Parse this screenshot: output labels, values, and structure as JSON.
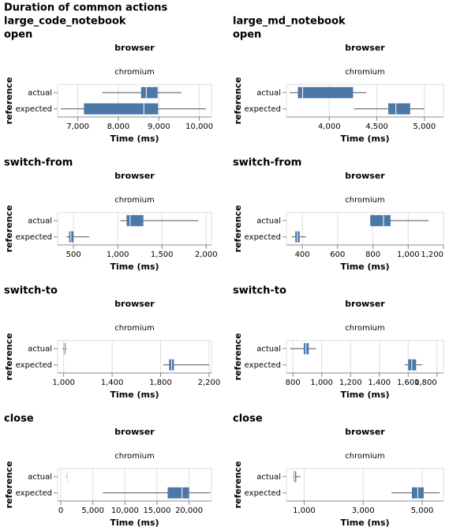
{
  "title": "Duration of common actions",
  "columns": [
    "large_code_notebook",
    "large_md_notebook"
  ],
  "chart_data": [
    {
      "type": "boxplot",
      "title": "open",
      "facet_title": "browser",
      "facet": "chromium",
      "ylabel": "reference",
      "xlabel": "Time (ms)",
      "categories": [
        "actual",
        "expected"
      ],
      "color": "#4c78a8",
      "grid": true,
      "min": [
        7600,
        6580
      ],
      "q1": [
        8560,
        7150
      ],
      "median": [
        8690,
        8630
      ],
      "q3": [
        8970,
        8980
      ],
      "max": [
        9560,
        10160
      ],
      "xlim": [
        6500,
        10300
      ],
      "xticks": [
        {
          "value": 7000,
          "label": "7,000"
        },
        {
          "value": 8000,
          "label": "8,000"
        },
        {
          "value": 9000,
          "label": "9,000"
        },
        {
          "value": 10000,
          "label": "10,000"
        }
      ]
    },
    {
      "type": "boxplot",
      "title": "open",
      "facet_title": "browser",
      "facet": "chromium",
      "ylabel": "reference",
      "xlabel": "Time (ms)",
      "categories": [
        "actual",
        "expected"
      ],
      "color": "#4c78a8",
      "grid": true,
      "min": [
        3585,
        4260
      ],
      "q1": [
        3670,
        4620
      ],
      "median": [
        3720,
        4700
      ],
      "q3": [
        4250,
        4850
      ],
      "max": [
        4390,
        5000
      ],
      "xlim": [
        3550,
        5200
      ],
      "xticks": [
        {
          "value": 4000,
          "label": "4,000"
        },
        {
          "value": 4500,
          "label": "4,500"
        },
        {
          "value": 5000,
          "label": "5,000"
        }
      ]
    },
    {
      "type": "boxplot",
      "title": "switch-from",
      "facet_title": "browser",
      "facet": "chromium",
      "ylabel": "reference",
      "xlabel": "Time (ms)",
      "categories": [
        "actual",
        "expected"
      ],
      "color": "#4c78a8",
      "grid": true,
      "min": [
        1030,
        420
      ],
      "q1": [
        1100,
        450
      ],
      "median": [
        1140,
        470
      ],
      "q3": [
        1290,
        500
      ],
      "max": [
        1910,
        680
      ],
      "xlim": [
        320,
        2060
      ],
      "xticks": [
        500,
        {
          "value": 1000,
          "label": "1,000"
        },
        {
          "value": 1500,
          "label": "1,500"
        },
        {
          "value": 2000,
          "label": "2,000"
        }
      ]
    },
    {
      "type": "boxplot",
      "title": "switch-from",
      "facet_title": "browser",
      "facet": "chromium",
      "ylabel": "reference",
      "xlabel": "Time (ms)",
      "categories": [
        "actual",
        "expected"
      ],
      "color": "#4c78a8",
      "grid": true,
      "min": [
        785,
        340
      ],
      "q1": [
        785,
        360
      ],
      "median": [
        860,
        372
      ],
      "q3": [
        900,
        385
      ],
      "max": [
        1115,
        420
      ],
      "xlim": [
        310,
        1200
      ],
      "xticks": [
        400,
        600,
        800,
        {
          "value": 1000,
          "label": "1,000"
        },
        {
          "value": 1200,
          "label": "1,200"
        }
      ]
    },
    {
      "type": "boxplot",
      "title": "switch-to",
      "facet_title": "browser",
      "facet": "chromium",
      "ylabel": "reference",
      "xlabel": "Time (ms)",
      "categories": [
        "actual",
        "expected"
      ],
      "color": "#4c78a8",
      "grid": true,
      "min": [
        990,
        1820
      ],
      "q1": [
        1000,
        1870
      ],
      "median": [
        1005,
        1890
      ],
      "q3": [
        1015,
        1910
      ],
      "max": [
        1025,
        2200
      ],
      "xlim": [
        950,
        2220
      ],
      "xticks": [
        {
          "value": 1000,
          "label": "1,000"
        },
        {
          "value": 1400,
          "label": "1,400"
        },
        {
          "value": 1800,
          "label": "1,800"
        },
        {
          "value": 2200,
          "label": "2,200"
        }
      ]
    },
    {
      "type": "boxplot",
      "title": "switch-to",
      "facet_title": "browser",
      "facet": "chromium",
      "ylabel": "reference",
      "xlabel": "Time (ms)",
      "categories": [
        "actual",
        "expected"
      ],
      "color": "#4c78a8",
      "grid": true,
      "min": [
        780,
        1575
      ],
      "q1": [
        875,
        1600
      ],
      "median": [
        890,
        1625
      ],
      "q3": [
        910,
        1655
      ],
      "max": [
        960,
        1700
      ],
      "xlim": [
        755,
        1845
      ],
      "xticks": [
        800,
        {
          "value": 1000,
          "label": "1,000"
        },
        {
          "value": 1200,
          "label": "1,200"
        },
        {
          "value": 1400,
          "label": "1,400"
        },
        {
          "value": 1600,
          "label": "1,600"
        },
        {
          "value": 1800,
          "label": "1,800"
        }
      ]
    },
    {
      "type": "boxplot",
      "title": "close",
      "facet_title": "browser",
      "facet": "chromium",
      "ylabel": "reference",
      "xlabel": "Time (ms)",
      "categories": [
        "actual",
        "expected"
      ],
      "color": "#4c78a8",
      "grid": true,
      "min": [
        830,
        6550
      ],
      "q1": [
        950,
        16670
      ],
      "median": [
        1000,
        18900
      ],
      "q3": [
        1050,
        20000
      ],
      "max": [
        1070,
        23330
      ],
      "xlim": [
        -500,
        23500
      ],
      "xticks": [
        0,
        {
          "value": 5000,
          "label": "5,000"
        },
        {
          "value": 10000,
          "label": "10,000"
        },
        {
          "value": 15000,
          "label": "15,000"
        },
        {
          "value": 20000,
          "label": "20,000"
        }
      ]
    },
    {
      "type": "boxplot",
      "title": "close",
      "facet_title": "browser",
      "facet": "chromium",
      "ylabel": "reference",
      "xlabel": "Time (ms)",
      "categories": [
        "actual",
        "expected"
      ],
      "color": "#4c78a8",
      "grid": true,
      "min": [
        630,
        3960
      ],
      "q1": [
        650,
        4650
      ],
      "median": [
        680,
        4850
      ],
      "q3": [
        730,
        5050
      ],
      "max": [
        870,
        5590
      ],
      "xlim": [
        400,
        5720
      ],
      "xticks": [
        {
          "value": 1000,
          "label": "1,000"
        },
        {
          "value": 3000,
          "label": "3,000"
        },
        {
          "value": 5000,
          "label": "5,000"
        }
      ]
    }
  ]
}
